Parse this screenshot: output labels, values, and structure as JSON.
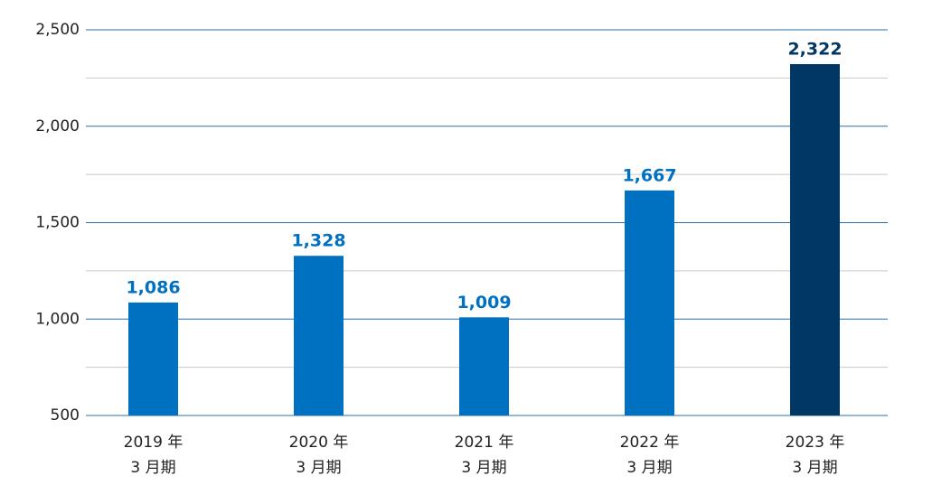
{
  "chart_data": {
    "type": "bar",
    "categories": [
      [
        "2019 年",
        "3 月期"
      ],
      [
        "2020 年",
        "3 月期"
      ],
      [
        "2021 年",
        "3 月期"
      ],
      [
        "2022 年",
        "3 月期"
      ],
      [
        "2023 年",
        "3 月期"
      ]
    ],
    "values": [
      1086,
      1328,
      1009,
      1667,
      2322
    ],
    "value_labels": [
      "1,086",
      "1,328",
      "1,009",
      "1,667",
      "2,322"
    ],
    "colors": [
      "#0070c0",
      "#0070c0",
      "#0070c0",
      "#0070c0",
      "#003764"
    ],
    "ylim": [
      500,
      2500
    ],
    "yticks": [
      500,
      {
        "value": 1000,
        "label": "1,000"
      },
      {
        "value": 1500,
        "label": "1,500"
      },
      {
        "value": 2000,
        "label": "2,000"
      },
      {
        "value": 2500,
        "label": "2,500"
      }
    ],
    "minor_yticks": [
      750,
      1250,
      1750,
      2250
    ],
    "grid": true
  }
}
